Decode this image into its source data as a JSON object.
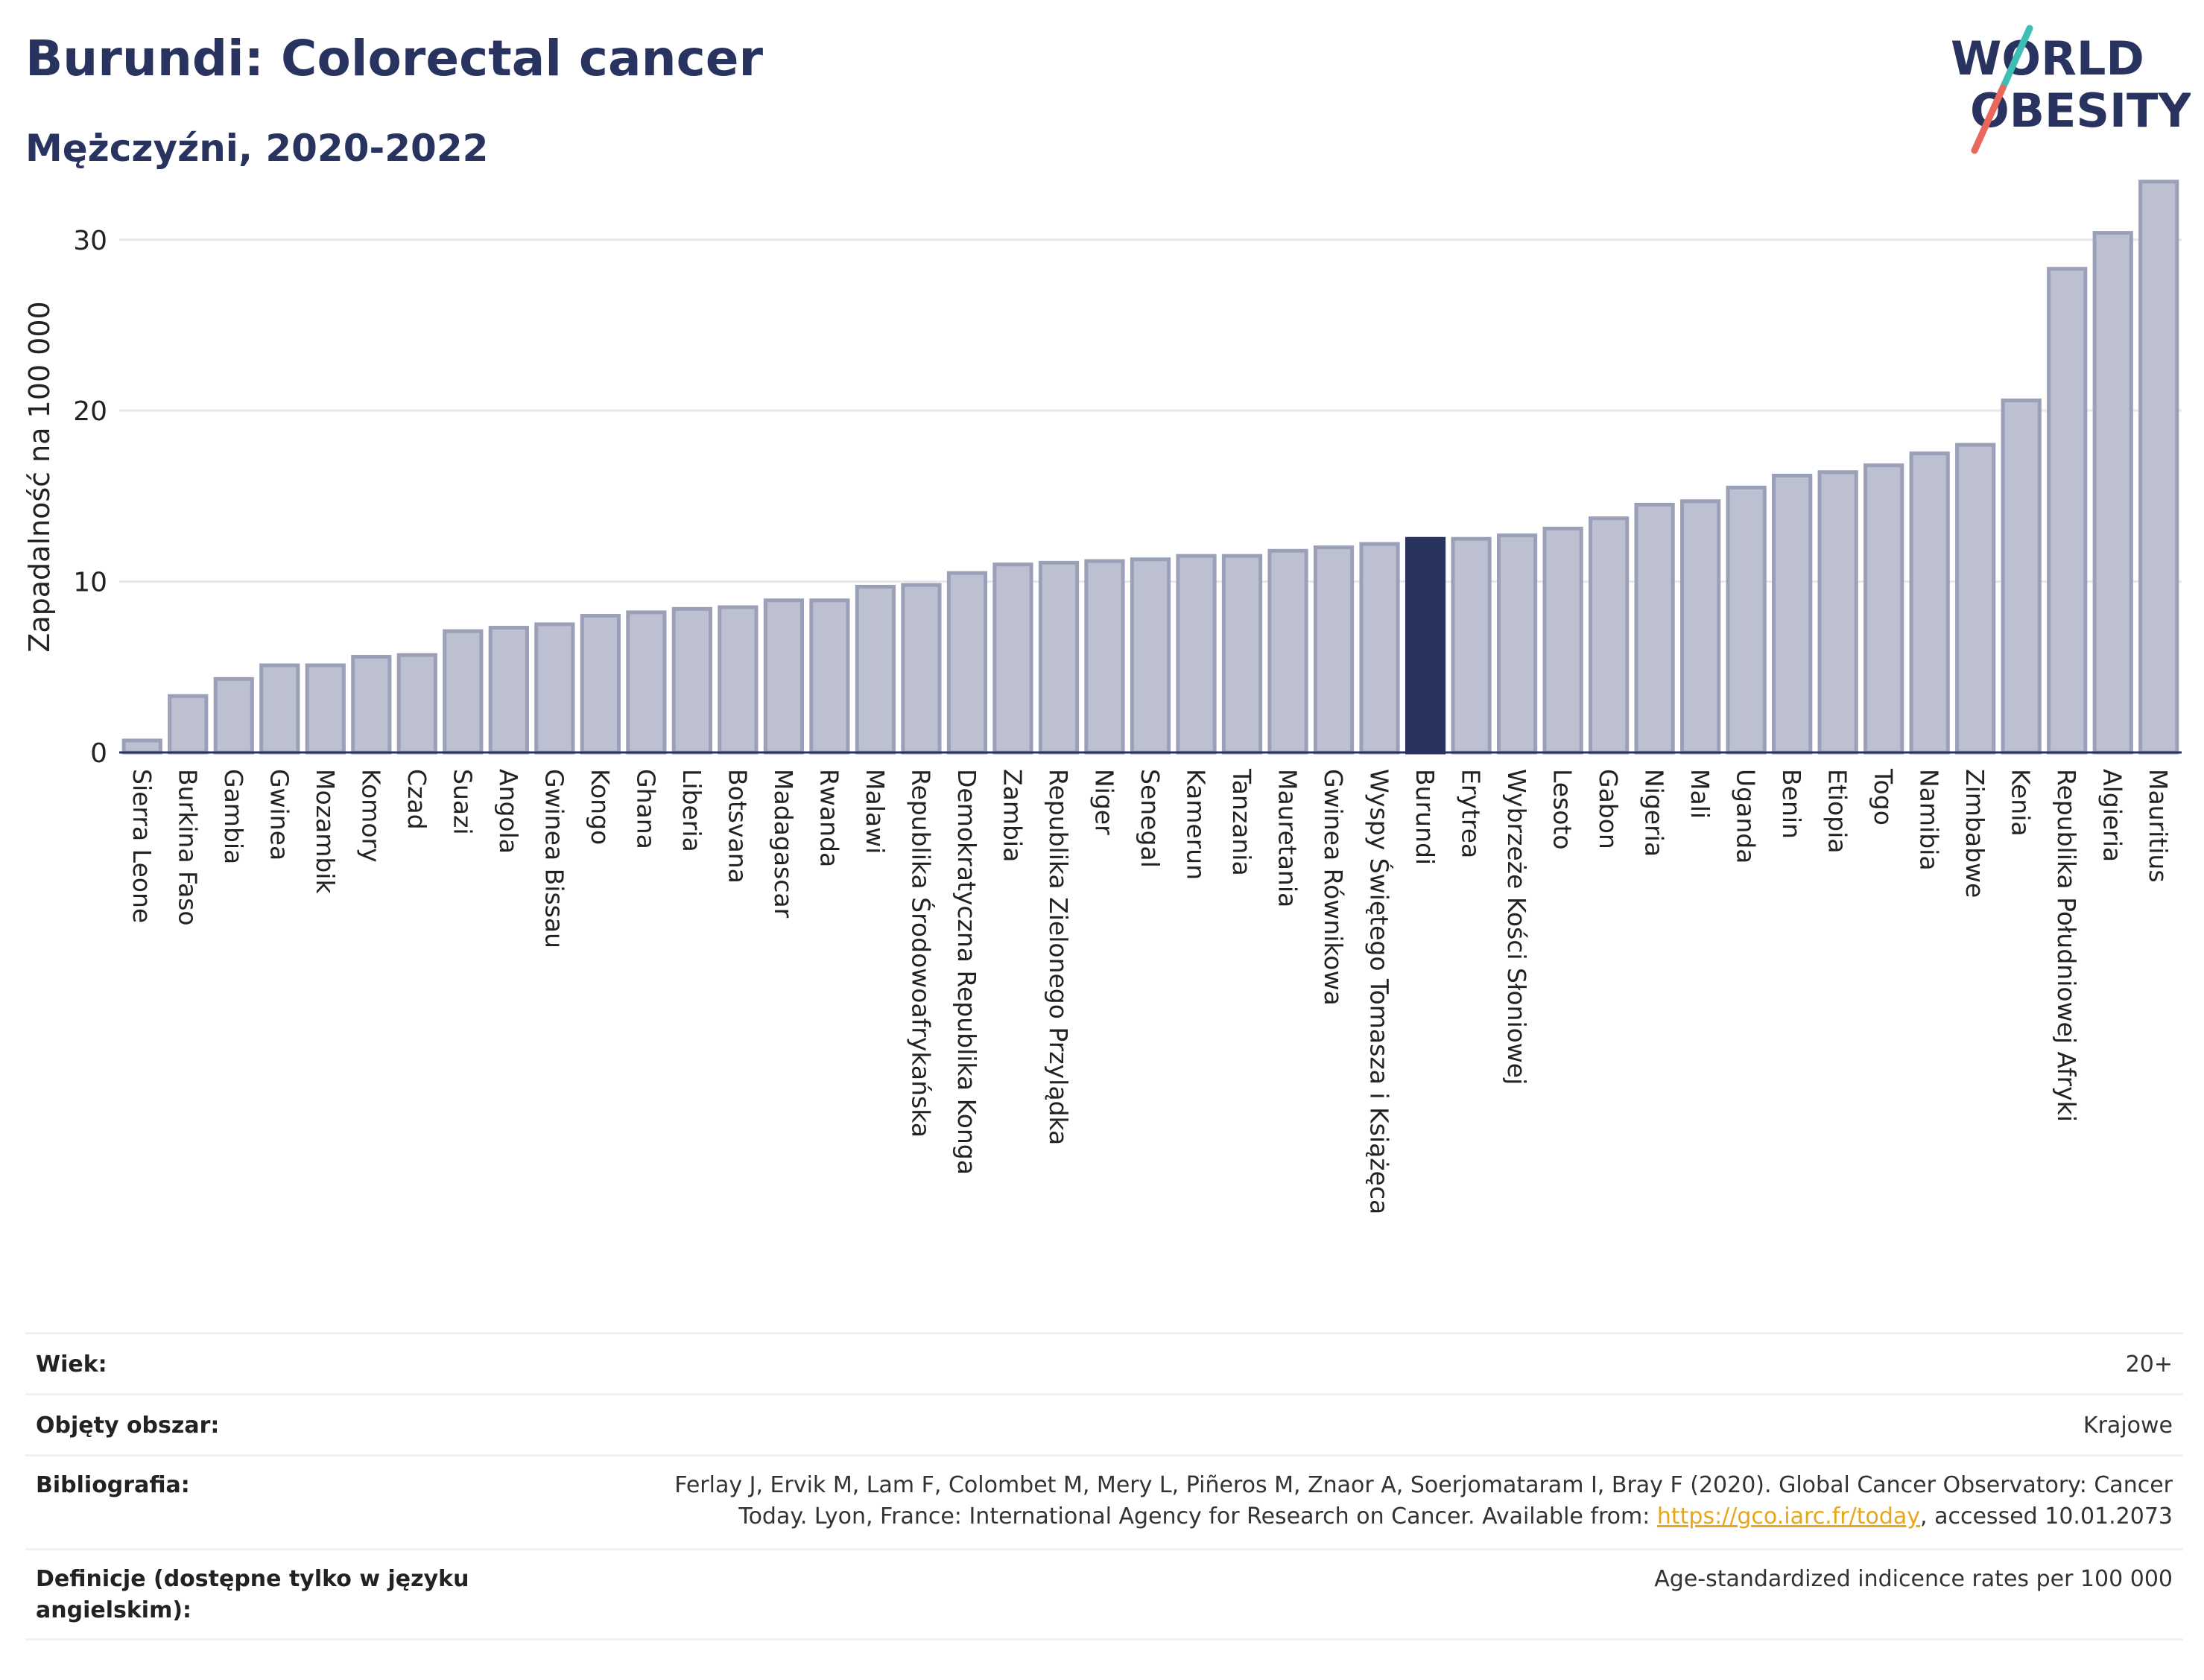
{
  "header": {
    "title": "Burundi: Colorectal cancer",
    "subtitle": "Mężczyźni, 2020-2022"
  },
  "logo": {
    "line1": "WORLD",
    "line2": "OBESITY",
    "colors": {
      "text": "#283360",
      "slash_top": "#3fbfb4",
      "slash_bottom": "#e9675b"
    }
  },
  "colors": {
    "bar_fill": "#bcc0d0",
    "bar_stroke": "#9aa0b8",
    "highlight": "#283360",
    "grid": "#e6e8ee",
    "axis": "#283360"
  },
  "chart_data": {
    "type": "bar",
    "title": "Burundi: Colorectal cancer",
    "subtitle": "Mężczyźni, 2020-2022",
    "xlabel": "",
    "ylabel": "Zapadalność na 100 000",
    "ylim": [
      0,
      34
    ],
    "yticks": [
      0,
      10,
      20,
      30
    ],
    "grid": true,
    "highlight": "Burundi",
    "categories": [
      "Sierra Leone",
      "Burkina Faso",
      "Gambia",
      "Gwinea",
      "Mozambik",
      "Komory",
      "Czad",
      "Suazi",
      "Angola",
      "Gwinea Bissau",
      "Kongo",
      "Ghana",
      "Liberia",
      "Botsvana",
      "Madagascar",
      "Rwanda",
      "Malawi",
      "Republika Środowoafrykańska",
      "Demokratyczna Republika Konga",
      "Zambia",
      "Republika Zielonego Przylądka",
      "Niger",
      "Senegal",
      "Kamerun",
      "Tanzania",
      "Mauretania",
      "Gwinea Równikowa",
      "Wyspy Świętego Tomasza i Książęca",
      "Burundi",
      "Erytrea",
      "Wybrzeże Kości Słoniowej",
      "Lesoto",
      "Gabon",
      "Nigeria",
      "Mali",
      "Uganda",
      "Benin",
      "Etiopia",
      "Togo",
      "Namibia",
      "Zimbabwe",
      "Kenia",
      "Republika Południowej Afryki",
      "Algieria",
      "Mauritius"
    ],
    "values": [
      0.7,
      3.3,
      4.3,
      5.1,
      5.1,
      5.6,
      5.7,
      7.1,
      7.3,
      7.5,
      8.0,
      8.2,
      8.4,
      8.5,
      8.9,
      8.9,
      9.7,
      9.8,
      10.5,
      11.0,
      11.1,
      11.2,
      11.3,
      11.5,
      11.5,
      11.8,
      12.0,
      12.2,
      12.5,
      12.5,
      12.7,
      13.1,
      13.7,
      14.5,
      14.7,
      15.5,
      16.2,
      16.4,
      16.8,
      17.5,
      18.0,
      20.6,
      28.3,
      30.4,
      33.4
    ]
  },
  "info": {
    "rows": [
      {
        "label": "Wiek:",
        "value": "20+"
      },
      {
        "label": "Objęty obszar:",
        "value": "Krajowe"
      },
      {
        "label": "Bibliografia:",
        "value_line1": "Ferlay J, Ervik M, Lam F, Colombet M, Mery L, Piñeros M, Znaor A, Soerjomataram I, Bray F (2020). Global Cancer Observatory: Cancer",
        "value_line2_pre": "Today. Lyon, France: International Agency for Research on Cancer. Available from: ",
        "value_link": "https://gco.iarc.fr/today",
        "value_line2_post": ", accessed 10.01.2073"
      },
      {
        "label_line1": "Definicje (dostępne tylko w języku",
        "label_line2": "angielskim):",
        "value": "Age-standardized indicence rates per 100 000"
      }
    ]
  }
}
